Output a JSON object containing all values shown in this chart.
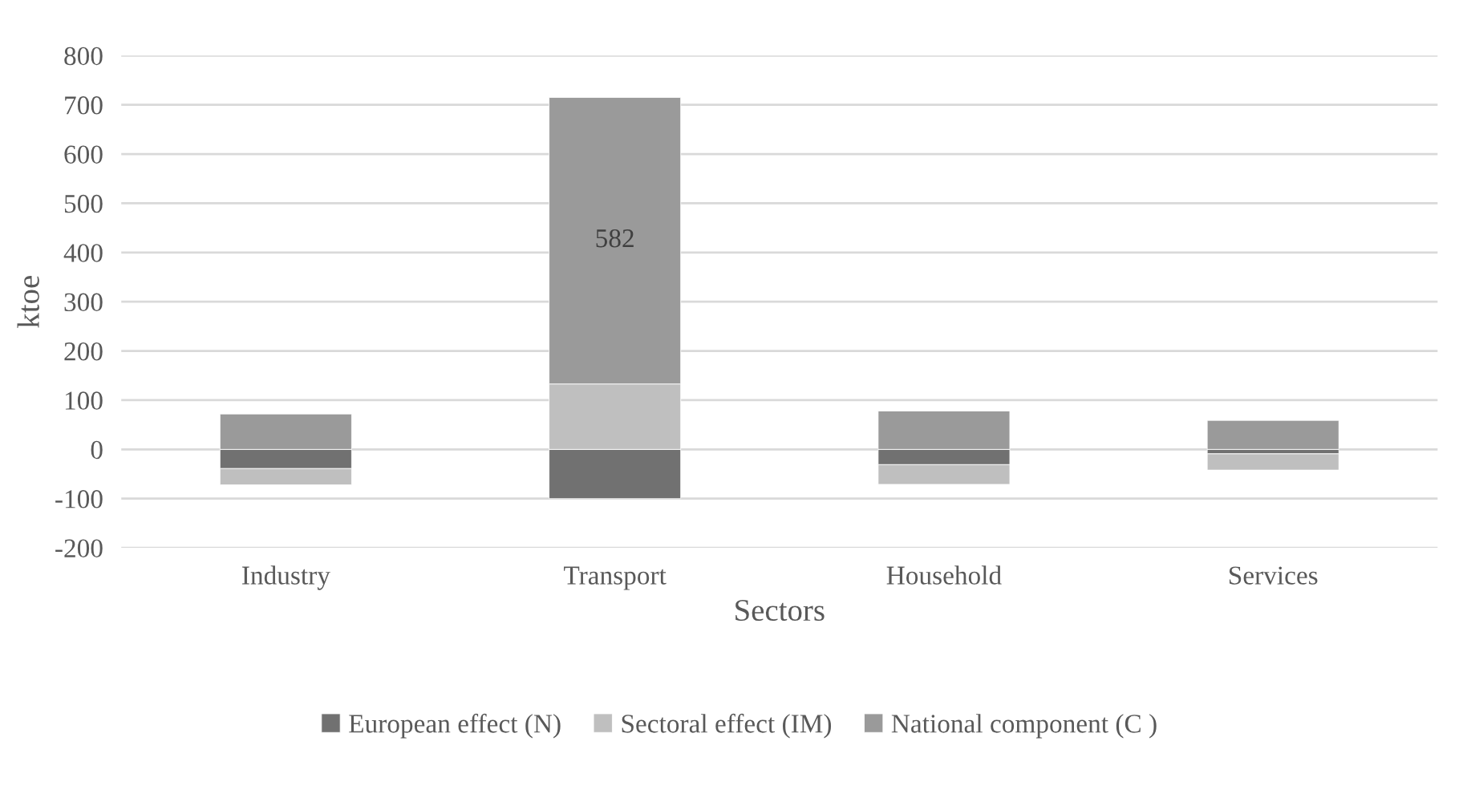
{
  "chart_data": {
    "type": "bar",
    "stacked": true,
    "xlabel": "Sectors",
    "ylabel": "ktoe",
    "categories": [
      "Industry",
      "Transport",
      "Household",
      "Services"
    ],
    "series": [
      {
        "name": "European effect (N)",
        "color": "#717171",
        "values": [
          -39,
          -100,
          -31,
          -9
        ]
      },
      {
        "name": "Sectoral effect (IM)",
        "color": "#bfbfbf",
        "values": [
          -33,
          133,
          -40,
          -33
        ]
      },
      {
        "name": "National component (C )",
        "color": "#9a9a9a",
        "values": [
          72,
          582,
          78,
          59
        ],
        "value_labels": [
          null,
          "582",
          null,
          null
        ]
      }
    ],
    "ylim": [
      -200,
      800
    ],
    "yticks": [
      -200,
      -100,
      0,
      100,
      200,
      300,
      400,
      500,
      600,
      700,
      800
    ],
    "grid": "y",
    "legend": "bottom"
  }
}
